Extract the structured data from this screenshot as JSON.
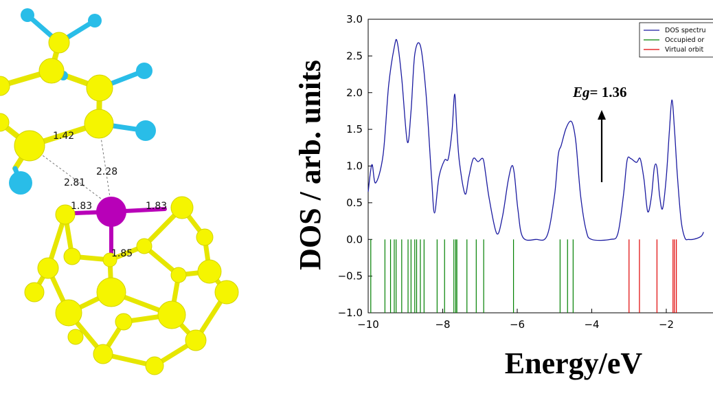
{
  "molecule": {
    "bond_labels": [
      "1.42",
      "2.28",
      "2.81",
      "1.83",
      "1.83",
      "1.85"
    ],
    "colors": {
      "cage_atom": "#f5f500",
      "fluorine": "#29bde8",
      "metal": "#b800b8",
      "bond": "#e6e600"
    }
  },
  "chart_data": {
    "type": "line",
    "xlabel": "Energy/eV",
    "ylabel": "DOS / arb. units",
    "xlim": [
      -10,
      -1
    ],
    "ylim": [
      -1.0,
      3.0
    ],
    "xticks": [
      -10,
      -8,
      -6,
      -4,
      -2
    ],
    "xtick_labels": [
      "−10",
      "−8",
      "−6",
      "−4",
      "−2"
    ],
    "yticks": [
      -1.0,
      -0.5,
      0.0,
      0.5,
      1.0,
      1.5,
      2.0,
      2.5,
      3.0
    ],
    "ytick_labels": [
      "−1.0",
      "−0.5",
      "0.0",
      "0.5",
      "1.0",
      "1.5",
      "2.0",
      "2.5",
      "3.0"
    ],
    "grid": false,
    "legend_position": "top-right",
    "series": [
      {
        "name": "DOS spectru",
        "color": "#1a1aa0",
        "x": [
          -10.0,
          -9.9,
          -9.8,
          -9.6,
          -9.45,
          -9.3,
          -9.22,
          -9.1,
          -8.95,
          -8.85,
          -8.75,
          -8.6,
          -8.45,
          -8.3,
          -8.22,
          -8.1,
          -7.95,
          -7.85,
          -7.75,
          -7.68,
          -7.62,
          -7.55,
          -7.4,
          -7.3,
          -7.18,
          -7.05,
          -6.92,
          -6.85,
          -6.75,
          -6.55,
          -6.4,
          -6.25,
          -6.15,
          -6.08,
          -5.98,
          -5.85,
          -5.5,
          -5.2,
          -5.0,
          -4.9,
          -4.82,
          -4.7,
          -4.58,
          -4.5,
          -4.42,
          -4.3,
          -4.15,
          -4.0,
          -3.5,
          -3.3,
          -3.15,
          -3.05,
          -2.95,
          -2.8,
          -2.7,
          -2.6,
          -2.5,
          -2.4,
          -2.32,
          -2.25,
          -2.18,
          -2.1,
          -2.0,
          -1.92,
          -1.85,
          -1.78,
          -1.7,
          -1.6,
          -1.5,
          -1.4,
          -1.3,
          -1.15,
          -1.05,
          -1.0
        ],
        "y": [
          0.65,
          1.02,
          0.77,
          1.15,
          2.1,
          2.62,
          2.69,
          2.2,
          1.33,
          1.75,
          2.52,
          2.64,
          2.0,
          0.85,
          0.36,
          0.85,
          1.08,
          1.1,
          1.48,
          1.98,
          1.5,
          1.05,
          0.62,
          0.85,
          1.1,
          1.06,
          1.1,
          0.9,
          0.55,
          0.08,
          0.3,
          0.78,
          1.0,
          0.9,
          0.4,
          0.03,
          0.0,
          0.05,
          0.6,
          1.15,
          1.28,
          1.5,
          1.61,
          1.55,
          1.3,
          0.6,
          0.12,
          0.0,
          0.0,
          0.08,
          0.6,
          1.08,
          1.1,
          1.05,
          1.1,
          0.82,
          0.38,
          0.58,
          0.98,
          0.98,
          0.6,
          0.42,
          0.85,
          1.45,
          1.9,
          1.5,
          0.85,
          0.25,
          0.02,
          0.0,
          0.0,
          0.02,
          0.05,
          0.1
        ]
      },
      {
        "name": "Occupied or",
        "color": "#008000",
        "type": "stick",
        "x": [
          -9.93,
          -9.55,
          -9.4,
          -9.3,
          -9.25,
          -9.1,
          -8.93,
          -8.85,
          -8.75,
          -8.7,
          -8.6,
          -8.5,
          -8.15,
          -7.95,
          -7.7,
          -7.65,
          -7.62,
          -7.35,
          -7.1,
          -6.9,
          -6.1,
          -4.85,
          -4.65,
          -4.5
        ],
        "y_range": [
          -1.0,
          0.0
        ]
      },
      {
        "name": "Virtual orbit",
        "color": "#e00000",
        "type": "stick",
        "x": [
          -3.0,
          -2.72,
          -2.25,
          -1.82,
          -1.78,
          -1.73
        ],
        "y_range": [
          -1.0,
          0.0
        ]
      }
    ],
    "annotations": [
      {
        "text_italic": "Eg",
        "text": "= 1.36",
        "arrow": "up",
        "x": -3.75
      }
    ]
  }
}
